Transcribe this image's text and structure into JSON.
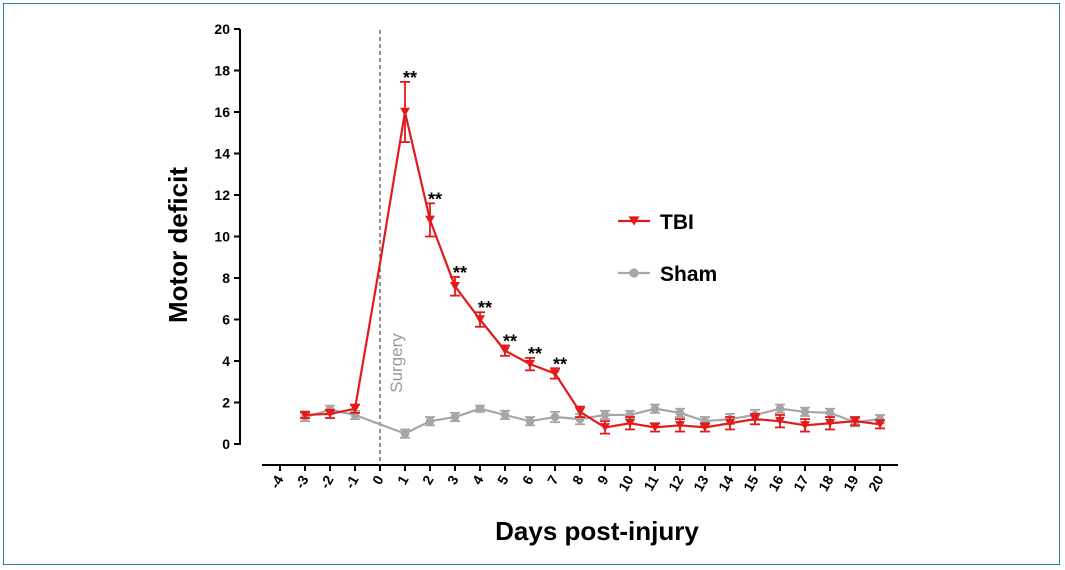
{
  "chart_data": {
    "type": "line",
    "xlabel": "Days post-injury",
    "ylabel": "Motor deficit",
    "ylim": [
      0,
      20
    ],
    "y_ticks": [
      "0",
      "2",
      "4",
      "6",
      "8",
      "10",
      "12",
      "14",
      "16",
      "18",
      "20"
    ],
    "x_ticks": [
      "-4",
      "-3",
      "-2",
      "-1",
      "0",
      "1",
      "2",
      "3",
      "4",
      "5",
      "6",
      "7",
      "8",
      "9",
      "10",
      "11",
      "12",
      "13",
      "14",
      "15",
      "16",
      "17",
      "18",
      "19",
      "20"
    ],
    "xlim": [
      -4,
      20
    ],
    "legend_position": "right",
    "annotation": {
      "text": "Surgery",
      "x": 0
    },
    "series": [
      {
        "name": "TBI",
        "color": "#e31a1c",
        "marker": "triangle-down",
        "x": [
          -3,
          -2,
          -1,
          0,
          1,
          2,
          3,
          4,
          5,
          6,
          7,
          8,
          9,
          10,
          11,
          12,
          13,
          14,
          15,
          16,
          17,
          18,
          19,
          20
        ],
        "y": [
          1.4,
          1.45,
          1.7,
          8.7,
          16.0,
          10.8,
          7.6,
          6.0,
          4.5,
          3.85,
          3.4,
          1.55,
          0.8,
          1.0,
          0.8,
          0.9,
          0.8,
          1.0,
          1.2,
          1.1,
          0.9,
          1.0,
          1.1,
          0.95
        ],
        "err": [
          0.15,
          0.2,
          0.2,
          0,
          1.45,
          0.8,
          0.45,
          0.35,
          0.25,
          0.3,
          0.25,
          0.25,
          0.3,
          0.3,
          0.2,
          0.3,
          0.2,
          0.3,
          0.25,
          0.3,
          0.3,
          0.3,
          0.2,
          0.2
        ]
      },
      {
        "name": "Sham",
        "color": "#a6a6a6",
        "marker": "circle",
        "x": [
          -3,
          -2,
          -1,
          0,
          1,
          2,
          3,
          4,
          5,
          6,
          7,
          8,
          9,
          10,
          11,
          12,
          13,
          14,
          15,
          16,
          17,
          18,
          19,
          20
        ],
        "y": [
          1.3,
          1.65,
          1.4,
          0.95,
          0.5,
          1.1,
          1.3,
          1.7,
          1.4,
          1.1,
          1.3,
          1.2,
          1.4,
          1.4,
          1.7,
          1.5,
          1.1,
          1.2,
          1.4,
          1.7,
          1.55,
          1.5,
          1.05,
          1.2
        ],
        "err": [
          0.2,
          0.2,
          0.2,
          0,
          0.2,
          0.2,
          0.2,
          0.15,
          0.2,
          0.2,
          0.25,
          0.25,
          0.2,
          0.2,
          0.2,
          0.2,
          0.2,
          0.25,
          0.25,
          0.2,
          0.2,
          0.2,
          0.2,
          0.2
        ]
      }
    ],
    "significance": [
      {
        "x": 1,
        "text": "**"
      },
      {
        "x": 2,
        "text": "**"
      },
      {
        "x": 3,
        "text": "**"
      },
      {
        "x": 4,
        "text": "**"
      },
      {
        "x": 5,
        "text": "**"
      },
      {
        "x": 6,
        "text": "**"
      },
      {
        "x": 7,
        "text": "**"
      }
    ]
  }
}
